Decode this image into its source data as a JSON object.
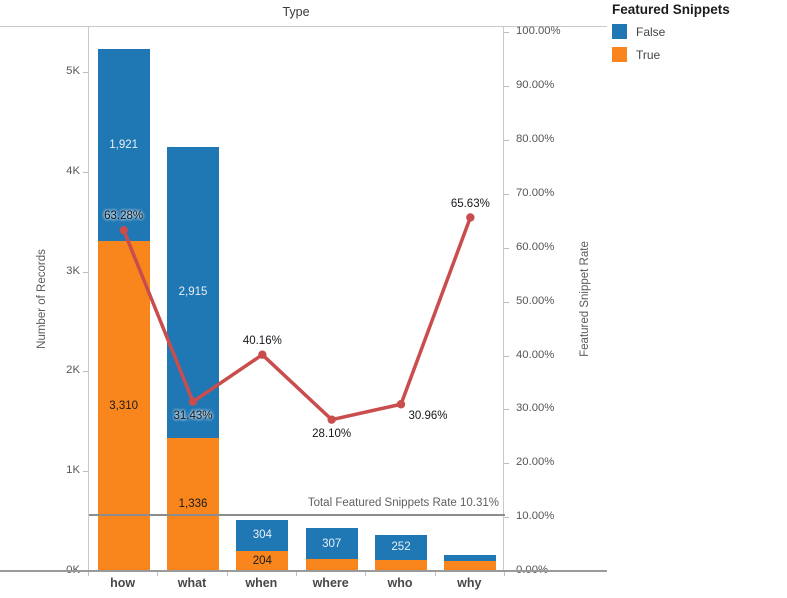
{
  "title": "Type",
  "legend": {
    "title": "Featured Snippets",
    "items": [
      {
        "label": "False",
        "color": "#1f77b4"
      },
      {
        "label": "True",
        "color": "#f8861d"
      }
    ]
  },
  "left_axis": {
    "label": "Number of Records",
    "tick_labels": [
      "0K",
      "1K",
      "2K",
      "3K",
      "4K",
      "5K"
    ],
    "tick_values": [
      0,
      1000,
      2000,
      3000,
      4000,
      5000
    ],
    "max": 5450
  },
  "right_axis": {
    "label": "Featured Snippet Rate",
    "tick_labels": [
      "0.00%",
      "10.00%",
      "20.00%",
      "30.00%",
      "40.00%",
      "50.00%",
      "60.00%",
      "70.00%",
      "80.00%",
      "90.00%",
      "100.00%"
    ],
    "tick_values": [
      0,
      10,
      20,
      30,
      40,
      50,
      60,
      70,
      80,
      90,
      100
    ],
    "max": 101
  },
  "reference_line": {
    "label": "Total Featured Snippets Rate 10.31%",
    "value": 10.31
  },
  "chart_data": {
    "type": "stacked_bar_line",
    "categories": [
      "how",
      "what",
      "when",
      "where",
      "who",
      "why"
    ],
    "series": [
      {
        "name": "True",
        "color": "#f8861d",
        "values": [
          3310,
          1336,
          204,
          120,
          113,
          105
        ],
        "labels": [
          "3,310",
          "1,336",
          "204",
          "",
          "",
          ""
        ]
      },
      {
        "name": "False",
        "color": "#1f77b4",
        "values": [
          1921,
          2915,
          304,
          307,
          252,
          55
        ],
        "labels": [
          "1,921",
          "2,915",
          "304",
          "307",
          "252",
          ""
        ]
      }
    ],
    "line": {
      "name": "Featured Snippet Rate",
      "color": "#ca4d4d",
      "values": [
        63.28,
        31.43,
        40.16,
        28.1,
        30.96,
        65.63
      ],
      "labels": [
        "63.28%",
        "31.43%",
        "40.16%",
        "28.10%",
        "30.96%",
        "65.63%"
      ],
      "label_positions": [
        "above",
        "below",
        "above",
        "below",
        "below-right",
        "above"
      ]
    },
    "unlabeled_segment_values_estimated": [
      "where.True",
      "who.True",
      "why.True",
      "why.False"
    ],
    "ylim_left": [
      0,
      5450
    ],
    "ylim_right": [
      0,
      101
    ],
    "grid": false,
    "legend_position": "top-right"
  }
}
